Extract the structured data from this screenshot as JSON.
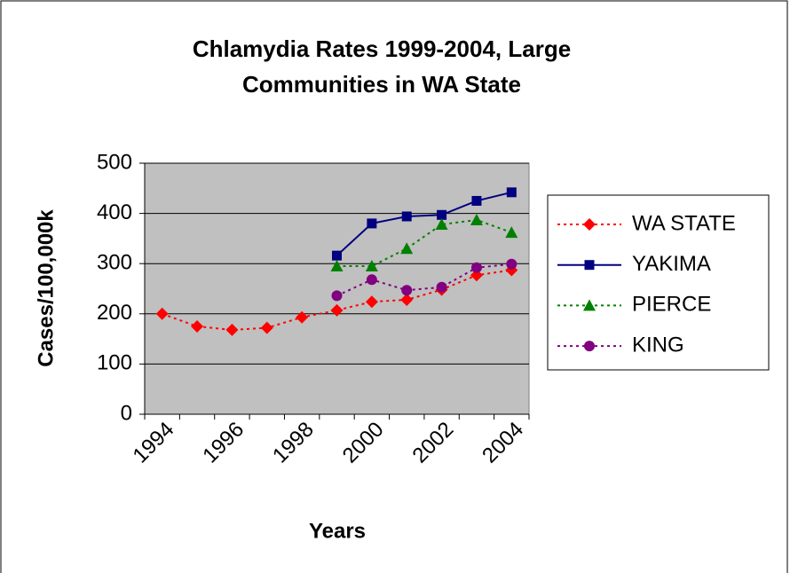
{
  "chart_data": {
    "type": "line",
    "title": [
      "Chlamydia Rates 1999-2004, Large",
      "Communities in WA State"
    ],
    "xlabel": "Years",
    "ylabel": "Cases/100,000k",
    "categories": [
      "1994",
      null,
      "1996",
      null,
      "1998",
      null,
      "2000",
      null,
      "2002",
      null,
      "2004"
    ],
    "ylim": [
      0,
      500
    ],
    "yticks": [
      0,
      100,
      200,
      300,
      400,
      500
    ],
    "grid": true,
    "series": [
      {
        "name": "WA STATE",
        "color": "#ff0000",
        "marker": "diamond",
        "dash": true,
        "values": [
          200,
          175,
          168,
          172,
          193,
          207,
          224,
          228,
          248,
          277,
          287
        ]
      },
      {
        "name": "YAKIMA",
        "color": "#000080",
        "marker": "square",
        "dash": false,
        "values": [
          null,
          null,
          null,
          null,
          null,
          316,
          380,
          394,
          397,
          425,
          442
        ]
      },
      {
        "name": "PIERCE",
        "color": "#008000",
        "marker": "triangle",
        "dash": true,
        "values": [
          null,
          null,
          null,
          null,
          null,
          295,
          295,
          330,
          378,
          387,
          362
        ]
      },
      {
        "name": "KING",
        "color": "#800080",
        "marker": "circle",
        "dash": true,
        "values": [
          null,
          null,
          null,
          null,
          null,
          236,
          268,
          247,
          253,
          292,
          299
        ]
      }
    ],
    "legend": "right"
  }
}
